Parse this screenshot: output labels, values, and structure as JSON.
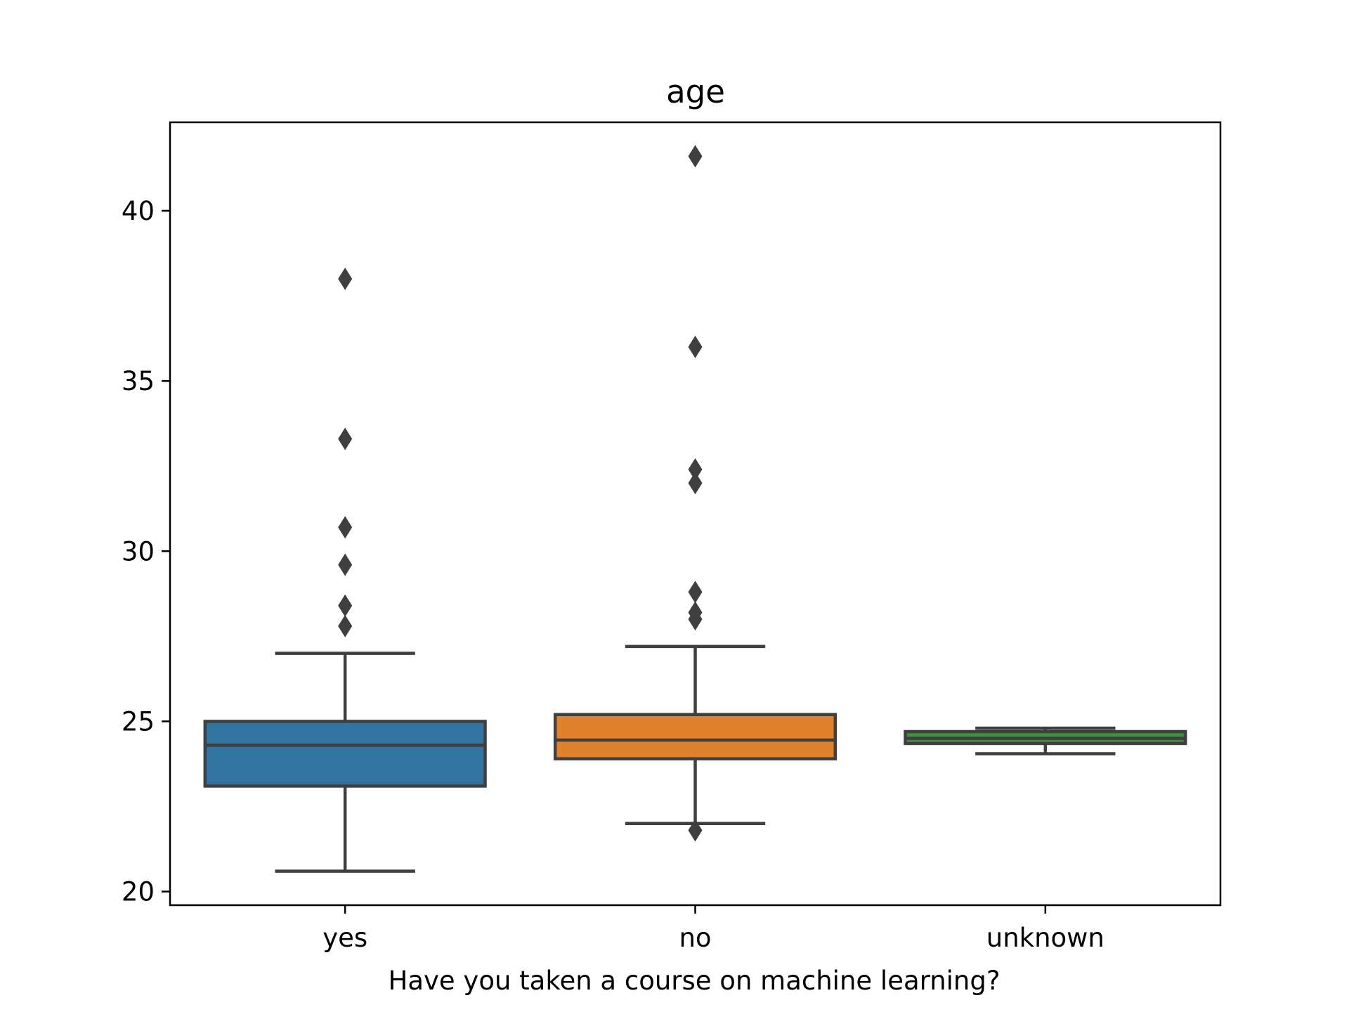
{
  "chart_data": {
    "type": "box",
    "title": "age",
    "xlabel": "Have you taken a course on machine learning?",
    "ylabel": "",
    "ylim": [
      19.6,
      42.6
    ],
    "yticks": [
      20,
      25,
      30,
      35,
      40
    ],
    "grid": false,
    "categories": [
      "yes",
      "no",
      "unknown"
    ],
    "boxes": [
      {
        "category": "yes",
        "color": "#3274a1",
        "whisker_low": 20.6,
        "q1": 23.1,
        "median": 24.3,
        "q3": 25.0,
        "whisker_high": 27.0,
        "outliers": [
          27.8,
          28.4,
          29.6,
          30.7,
          33.3,
          38.0
        ]
      },
      {
        "category": "no",
        "color": "#e1812c",
        "whisker_low": 22.0,
        "q1": 23.9,
        "median": 24.45,
        "q3": 25.2,
        "whisker_high": 27.2,
        "outliers": [
          21.8,
          28.0,
          28.2,
          28.8,
          32.0,
          32.4,
          36.0,
          41.6
        ]
      },
      {
        "category": "unknown",
        "color": "#3a923a",
        "whisker_low": 24.05,
        "q1": 24.35,
        "median": 24.5,
        "q3": 24.7,
        "whisker_high": 24.8,
        "outliers": []
      }
    ],
    "line_color": "#3f3f3f"
  }
}
